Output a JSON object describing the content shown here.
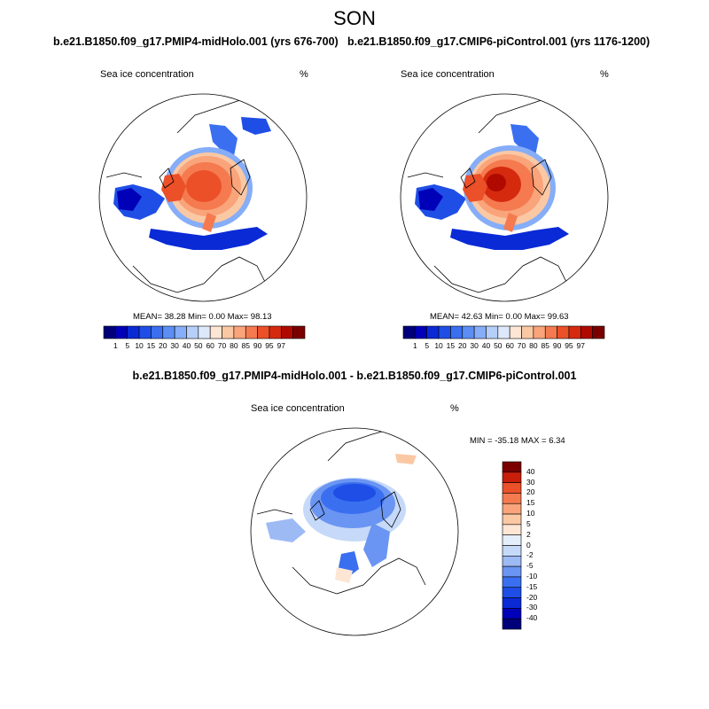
{
  "figure": {
    "season": "SON",
    "diff_title": "b.e21.B1850.f09_g17.PMIP4-midHolo.001 - b.e21.B1850.f09_g17.CMIP6-piControl.001"
  },
  "panels": [
    {
      "title": "b.e21.B1850.f09_g17.PMIP4-midHolo.001 (yrs 676-700)",
      "variable": "Sea ice concentration",
      "units": "%",
      "stats_text": "MEAN=  38.28  Min=   0.00  Max=  98.13"
    },
    {
      "title": "b.e21.B1850.f09_g17.CMIP6-piControl.001 (yrs 1176-1200)",
      "variable": "Sea ice concentration",
      "units": "%",
      "stats_text": "MEAN=  42.63  Min=   0.00  Max=  99.63"
    },
    {
      "title": "",
      "variable": "Sea ice concentration",
      "units": "%",
      "stats_text": "MIN = -35.18 MAX =   6.34"
    }
  ],
  "colors": {
    "abs_levels": [
      "#00007a",
      "#0000b8",
      "#0a2ad6",
      "#1f4ee6",
      "#3a6ff0",
      "#5c8ef4",
      "#86adf7",
      "#b5cff9",
      "#dde9fb",
      "#fde6d4",
      "#fbc8a4",
      "#f9a47a",
      "#f57a4f",
      "#ec5028",
      "#d62a0e",
      "#b00a00",
      "#7a0000"
    ],
    "diff_levels": [
      "#00007a",
      "#0000b8",
      "#0a2ad6",
      "#1f4ee6",
      "#3a6ff0",
      "#6b95f2",
      "#9dbaf5",
      "#c6d9f8",
      "#e3eefa",
      "#fde6d4",
      "#fbc8a4",
      "#f9a47a",
      "#f57a4f",
      "#ec5028",
      "#c81e0a",
      "#7a0000"
    ]
  },
  "chart_data": [
    {
      "type": "heatmap",
      "projection": "north-polar-stereographic",
      "title": "b.e21.B1850.f09_g17.PMIP4-midHolo.001 (yrs 676-700)",
      "variable": "Sea ice concentration",
      "units": "%",
      "mean": 38.28,
      "min": 0.0,
      "max": 98.13,
      "colorbar_ticks": [
        "1",
        "5",
        "10",
        "15",
        "20",
        "30",
        "40",
        "50",
        "60",
        "70",
        "80",
        "85",
        "90",
        "95",
        "97"
      ]
    },
    {
      "type": "heatmap",
      "projection": "north-polar-stereographic",
      "title": "b.e21.B1850.f09_g17.CMIP6-piControl.001 (yrs 1176-1200)",
      "variable": "Sea ice concentration",
      "units": "%",
      "mean": 42.63,
      "min": 0.0,
      "max": 99.63,
      "colorbar_ticks": [
        "1",
        "5",
        "10",
        "15",
        "20",
        "30",
        "40",
        "50",
        "60",
        "70",
        "80",
        "85",
        "90",
        "95",
        "97"
      ]
    },
    {
      "type": "heatmap",
      "projection": "north-polar-stereographic",
      "title": "b.e21.B1850.f09_g17.PMIP4-midHolo.001 - b.e21.B1850.f09_g17.CMIP6-piControl.001",
      "variable": "Sea ice concentration",
      "units": "%",
      "min": -35.18,
      "max": 6.34,
      "colorbar_ticks": [
        "40",
        "30",
        "20",
        "15",
        "10",
        "5",
        "2",
        "0",
        "-2",
        "-5",
        "-10",
        "-15",
        "-20",
        "-30",
        "-40"
      ]
    }
  ]
}
